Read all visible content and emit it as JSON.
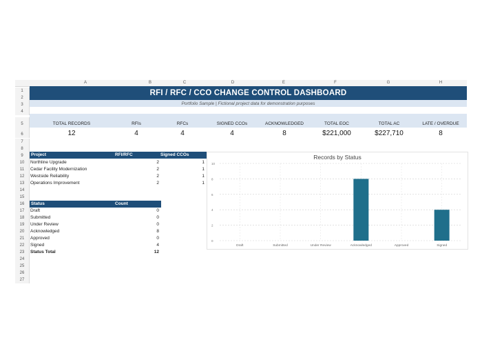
{
  "columns": [
    "A",
    "B",
    "C",
    "D",
    "E",
    "F",
    "G",
    "H"
  ],
  "rows": [
    "1",
    "2",
    "3",
    "4",
    "5",
    "6",
    "7",
    "8",
    "9",
    "10",
    "11",
    "12",
    "13",
    "14",
    "15",
    "16",
    "17",
    "18",
    "19",
    "20",
    "21",
    "22",
    "23",
    "24",
    "25",
    "26",
    "27"
  ],
  "title": "RFI / RFC / CCO CHANGE CONTROL DASHBOARD",
  "subtitle": "Portfolio Sample | Fictional project data for demonstration purposes",
  "kpis": [
    {
      "label": "TOTAL RECORDS",
      "value": "12"
    },
    {
      "label": "RFIs",
      "value": "4"
    },
    {
      "label": "RFCs",
      "value": "4"
    },
    {
      "label": "SIGNED CCOs",
      "value": "4"
    },
    {
      "label": "ACKNOWLEDGED",
      "value": "8"
    },
    {
      "label": "TOTAL EOC",
      "value": "$221,000"
    },
    {
      "label": "TOTAL AC",
      "value": "$227,710"
    },
    {
      "label": "LATE / OVERDUE",
      "value": "8"
    }
  ],
  "project_table": {
    "headers": [
      "Project",
      "RFI/RFC",
      "Signed CCOs"
    ],
    "rows": [
      [
        "Northline Upgrade",
        "2",
        "1"
      ],
      [
        "Cedar Facility Modernization",
        "2",
        "1"
      ],
      [
        "Westside Reliability",
        "2",
        "1"
      ],
      [
        "Operations Improvement",
        "2",
        "1"
      ]
    ]
  },
  "status_table": {
    "headers": [
      "Status",
      "Count"
    ],
    "rows": [
      [
        "Draft",
        "0"
      ],
      [
        "Submitted",
        "0"
      ],
      [
        "Under Review",
        "0"
      ],
      [
        "Acknowledged",
        "8"
      ],
      [
        "Approved",
        "0"
      ],
      [
        "Signed",
        "4"
      ]
    ],
    "total_label": "Status Total",
    "total_value": "12"
  },
  "chart_data": {
    "type": "bar",
    "title": "Records by Status",
    "categories": [
      "Draft",
      "Submitted",
      "Under Review",
      "Acknowledged",
      "Approved",
      "Signed"
    ],
    "values": [
      0,
      0,
      0,
      8,
      0,
      4
    ],
    "ylim": [
      0,
      10
    ],
    "yticks": [
      "0",
      "2",
      "4",
      "6",
      "8",
      "10"
    ],
    "grid": true,
    "bar_color": "#1f6f8b"
  },
  "colors": {
    "header_blue": "#1f4e79",
    "light_blue": "#dce6f2"
  }
}
